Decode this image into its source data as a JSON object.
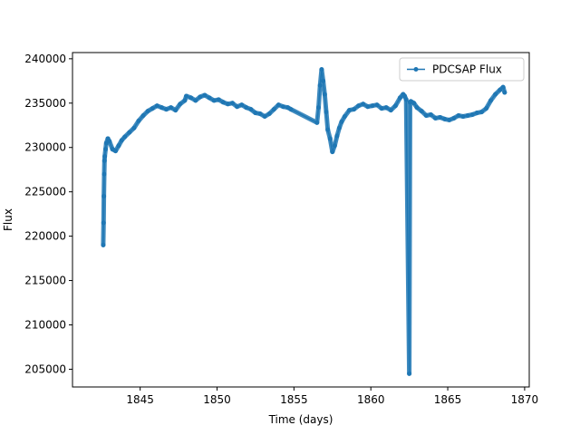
{
  "chart_data": {
    "type": "line",
    "title": "",
    "xlabel": "Time (days)",
    "ylabel": "Flux",
    "xlim": [
      1840.6,
      1870.3
    ],
    "ylim": [
      203000,
      240700
    ],
    "xticks": [
      1845,
      1850,
      1855,
      1860,
      1865,
      1870
    ],
    "yticks": [
      205000,
      210000,
      215000,
      220000,
      225000,
      230000,
      235000,
      240000
    ],
    "grid": false,
    "legend": "top-right",
    "series": [
      {
        "name": "PDCSAP Flux",
        "color": "#1f77b4",
        "marker": "circle",
        "x": [
          1842.6,
          1842.62,
          1842.64,
          1842.66,
          1842.68,
          1842.7,
          1842.75,
          1842.8,
          1842.9,
          1843.0,
          1843.2,
          1843.4,
          1843.6,
          1843.8,
          1844.0,
          1844.3,
          1844.6,
          1844.9,
          1845.2,
          1845.5,
          1845.8,
          1846.1,
          1846.4,
          1846.7,
          1847.0,
          1847.3,
          1847.6,
          1847.9,
          1848.0,
          1848.3,
          1848.6,
          1848.9,
          1849.2,
          1849.5,
          1849.8,
          1850.1,
          1850.4,
          1850.7,
          1851.0,
          1851.3,
          1851.6,
          1851.9,
          1852.2,
          1852.5,
          1852.8,
          1853.1,
          1853.4,
          1853.7,
          1854.0,
          1854.3,
          1854.6,
          1854.8,
          1856.5,
          1856.6,
          1856.7,
          1856.8,
          1856.9,
          1857.0,
          1857.1,
          1857.2,
          1857.35,
          1857.5,
          1857.65,
          1857.8,
          1857.95,
          1858.1,
          1858.3,
          1858.6,
          1858.9,
          1859.2,
          1859.5,
          1859.8,
          1860.1,
          1860.4,
          1860.7,
          1861.0,
          1861.3,
          1861.6,
          1861.9,
          1862.1,
          1862.2,
          1862.3,
          1862.5,
          1862.55,
          1862.6,
          1862.8,
          1863.0,
          1863.3,
          1863.6,
          1863.9,
          1864.2,
          1864.5,
          1864.8,
          1865.1,
          1865.4,
          1865.7,
          1866.0,
          1866.3,
          1866.6,
          1866.9,
          1867.2,
          1867.5,
          1867.8,
          1868.1,
          1868.4,
          1868.6,
          1868.7
        ],
        "y": [
          219000,
          221500,
          224500,
          227000,
          228500,
          229000,
          229800,
          230500,
          231000,
          230700,
          229800,
          229600,
          230200,
          230800,
          231200,
          231700,
          232200,
          233000,
          233600,
          234100,
          234400,
          234700,
          234500,
          234300,
          234500,
          234200,
          234900,
          235300,
          235800,
          235600,
          235300,
          235700,
          235900,
          235600,
          235300,
          235400,
          235100,
          234900,
          235000,
          234600,
          234800,
          234500,
          234300,
          233900,
          233800,
          233500,
          233800,
          234300,
          234800,
          234600,
          234500,
          234300,
          232800,
          234500,
          237000,
          238800,
          237500,
          236000,
          234000,
          232000,
          231000,
          229500,
          230200,
          231300,
          232200,
          232900,
          233500,
          234200,
          234300,
          234700,
          234900,
          234600,
          234700,
          234800,
          234400,
          234500,
          234200,
          234700,
          235600,
          236000,
          235800,
          235400,
          204500,
          235100,
          235200,
          235000,
          234500,
          234100,
          233600,
          233700,
          233300,
          233400,
          233200,
          233100,
          233300,
          233600,
          233500,
          233600,
          233700,
          233900,
          234000,
          234400,
          235300,
          236000,
          236500,
          236800,
          236200
        ]
      }
    ]
  }
}
